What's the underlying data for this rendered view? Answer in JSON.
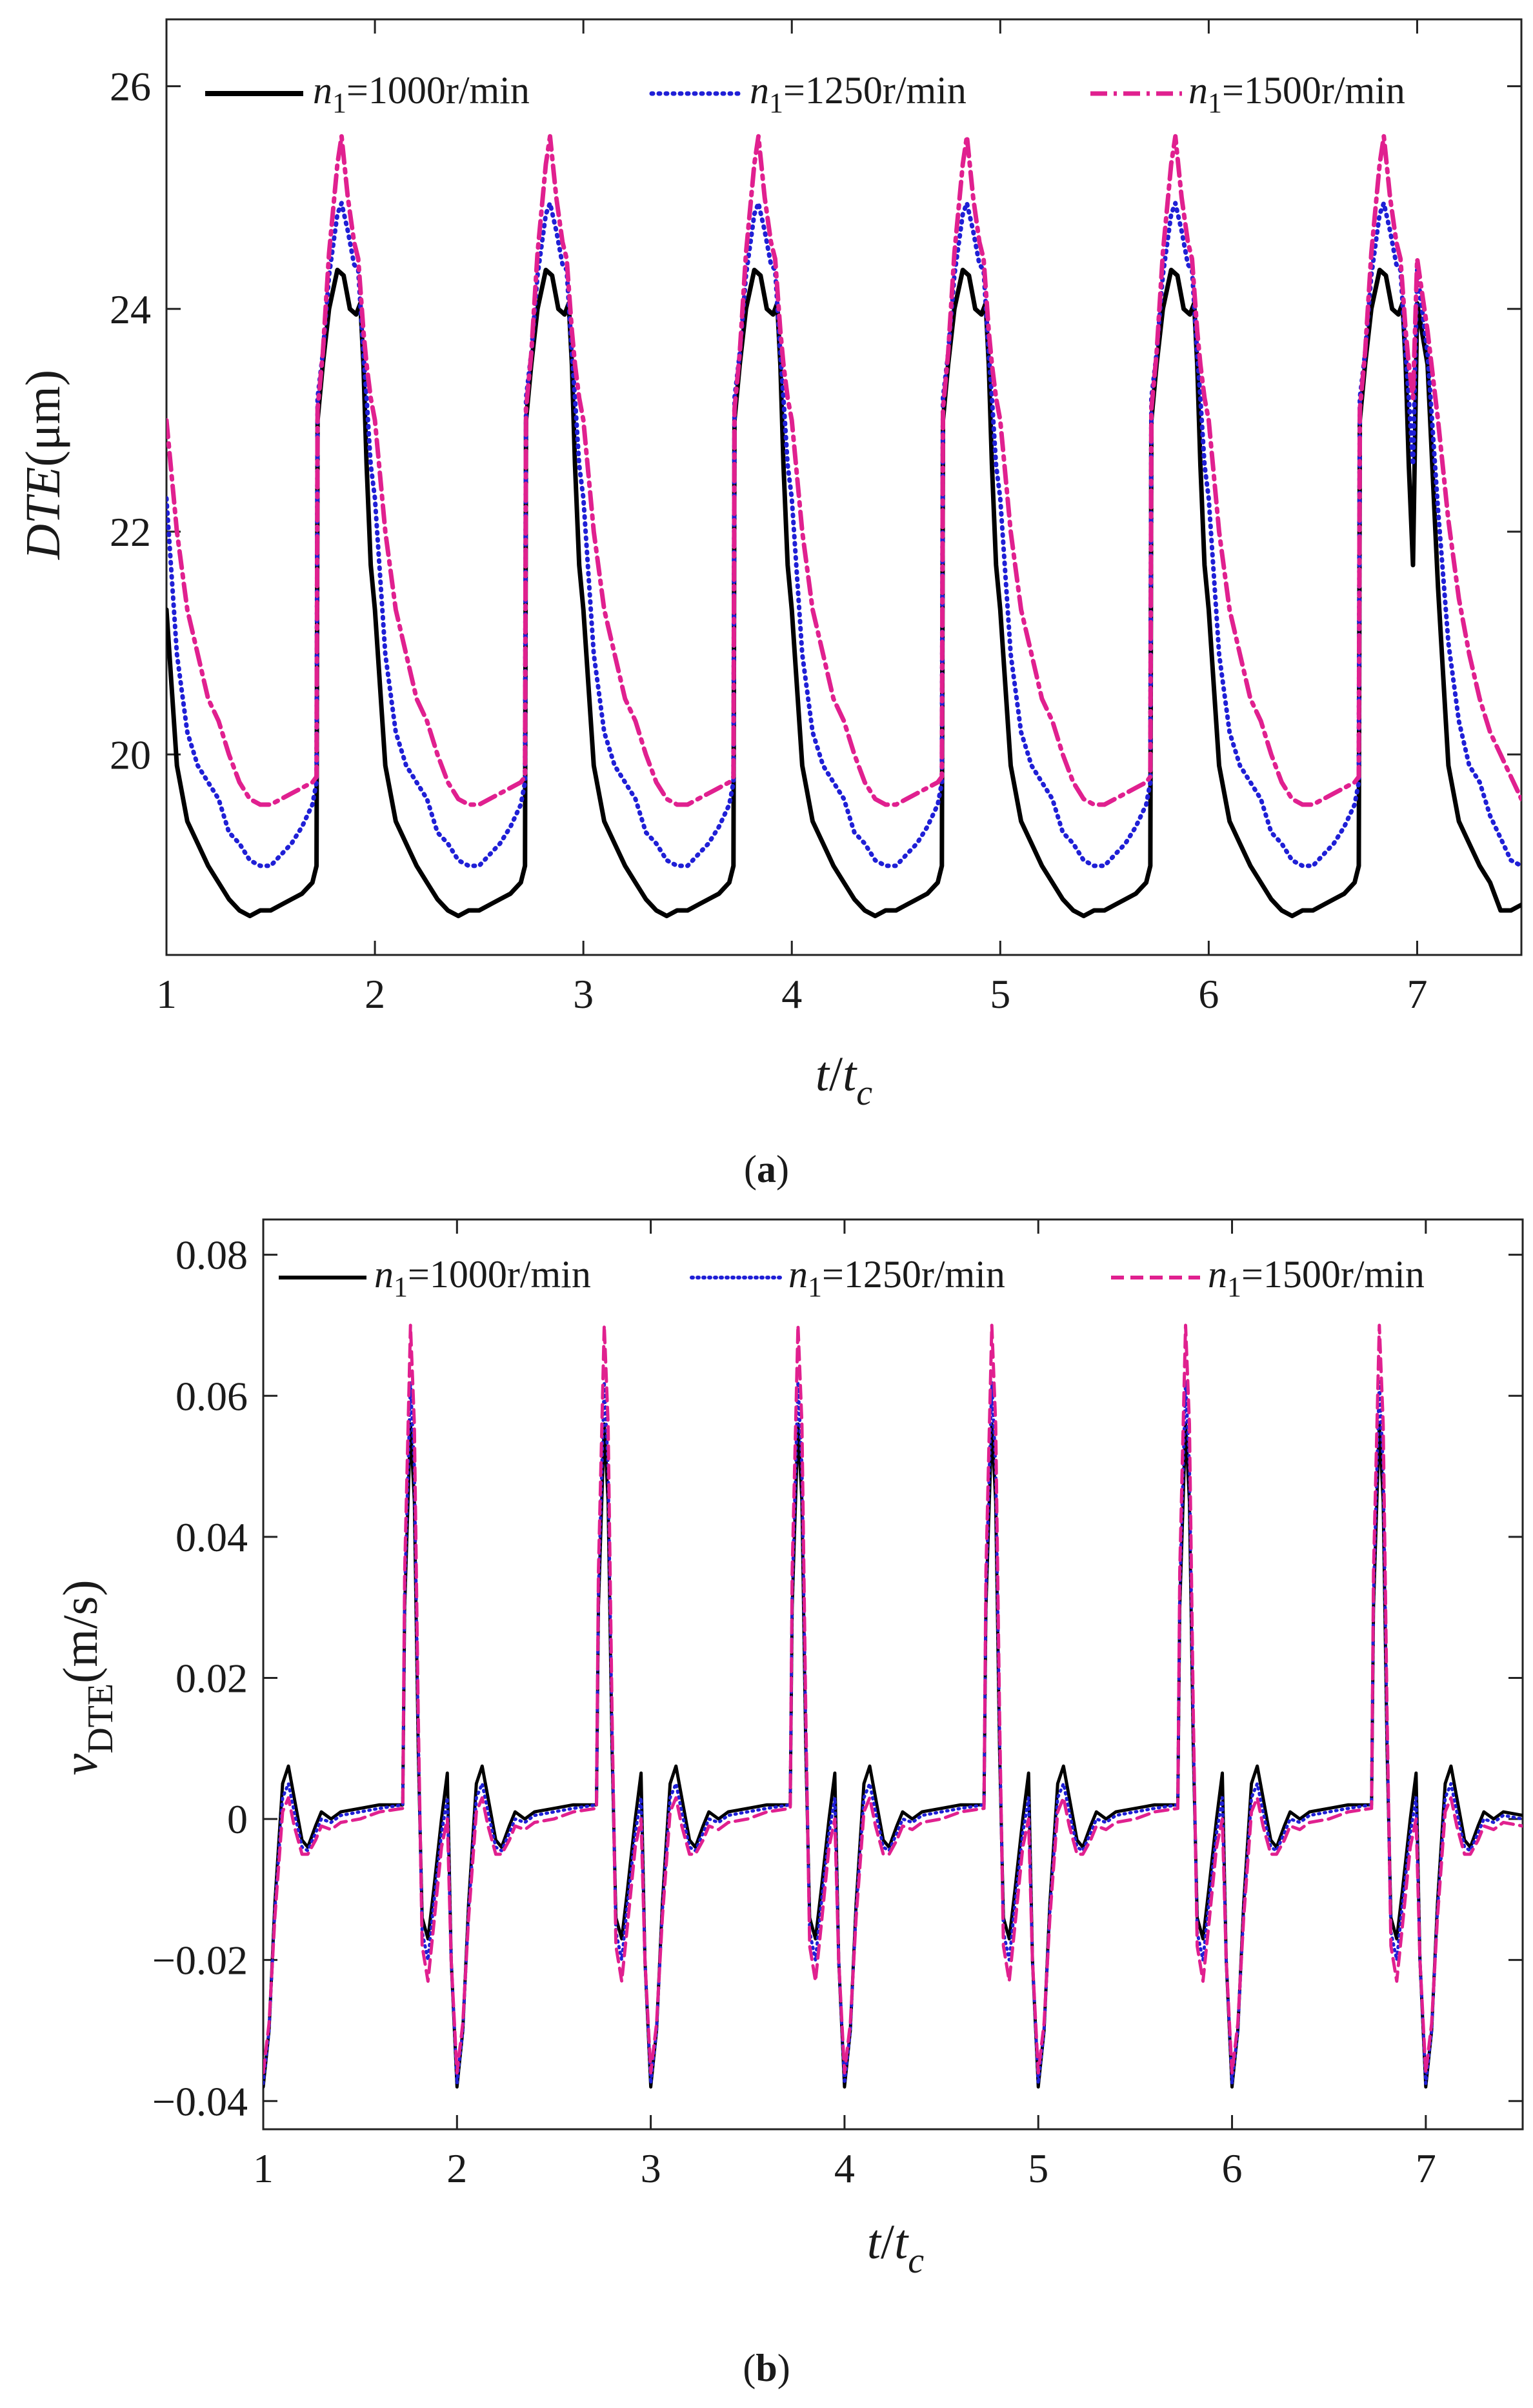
{
  "chart_data": [
    {
      "id": "a",
      "type": "line",
      "caption": {
        "open": "(",
        "letter": "a",
        "close": ")"
      },
      "ylabel": {
        "main": "DTE",
        "unit": "(μm)"
      },
      "xlabel": {
        "num": "t",
        "slash": "/",
        "den": "t",
        "sub": "c"
      },
      "xlim": [
        1,
        7.5
      ],
      "ylim": [
        18.2,
        26.6
      ],
      "xticks": [
        1,
        2,
        3,
        4,
        5,
        6,
        7
      ],
      "yticks": [
        20,
        22,
        24,
        26
      ],
      "period": 1,
      "legend_position": "top",
      "series": [
        {
          "name": "n1=1000r/min",
          "label": {
            "var": "n",
            "sub": "1",
            "rest": "=1000r/min"
          },
          "color": "#000000",
          "style": "solid",
          "cycle": [
            [
              0.0,
              21.3
            ],
            [
              0.05,
              19.9
            ],
            [
              0.1,
              19.4
            ],
            [
              0.15,
              19.2
            ],
            [
              0.2,
              19.0
            ],
            [
              0.25,
              18.85
            ],
            [
              0.3,
              18.7
            ],
            [
              0.35,
              18.6
            ],
            [
              0.4,
              18.55
            ],
            [
              0.45,
              18.6
            ],
            [
              0.5,
              18.6
            ],
            [
              0.55,
              18.65
            ],
            [
              0.6,
              18.7
            ],
            [
              0.65,
              18.75
            ],
            [
              0.7,
              18.85
            ],
            [
              0.72,
              19.0
            ],
            [
              0.725,
              23.0
            ],
            [
              0.75,
              23.5
            ],
            [
              0.78,
              24.0
            ],
            [
              0.82,
              24.35
            ],
            [
              0.85,
              24.3
            ],
            [
              0.88,
              24.0
            ],
            [
              0.91,
              23.95
            ],
            [
              0.93,
              24.05
            ],
            [
              0.945,
              23.5
            ],
            [
              0.96,
              22.6
            ],
            [
              0.98,
              21.7
            ]
          ],
          "values": [
            [
              7.0,
              24.05
            ],
            [
              7.05,
              23.5
            ],
            [
              7.1,
              21.5
            ],
            [
              7.15,
              19.9
            ],
            [
              7.2,
              19.4
            ],
            [
              7.25,
              19.2
            ],
            [
              7.3,
              19.0
            ],
            [
              7.35,
              18.85
            ],
            [
              7.4,
              18.6
            ],
            [
              7.45,
              18.6
            ],
            [
              7.5,
              18.65
            ]
          ]
        },
        {
          "name": "n1=1250r/min",
          "label": {
            "var": "n",
            "sub": "1",
            "rest": "=1250r/min"
          },
          "color": "#1f1fd6",
          "style": "dotted",
          "cycle": [
            [
              0.0,
              22.3
            ],
            [
              0.05,
              20.9
            ],
            [
              0.1,
              20.2
            ],
            [
              0.15,
              19.9
            ],
            [
              0.2,
              19.75
            ],
            [
              0.25,
              19.6
            ],
            [
              0.3,
              19.3
            ],
            [
              0.35,
              19.2
            ],
            [
              0.4,
              19.05
            ],
            [
              0.45,
              19.0
            ],
            [
              0.5,
              19.0
            ],
            [
              0.55,
              19.1
            ],
            [
              0.6,
              19.2
            ],
            [
              0.65,
              19.35
            ],
            [
              0.7,
              19.55
            ],
            [
              0.72,
              19.75
            ],
            [
              0.725,
              23.2
            ],
            [
              0.75,
              23.6
            ],
            [
              0.78,
              24.3
            ],
            [
              0.82,
              24.85
            ],
            [
              0.84,
              24.95
            ],
            [
              0.87,
              24.7
            ],
            [
              0.9,
              24.4
            ],
            [
              0.92,
              24.35
            ],
            [
              0.945,
              23.6
            ],
            [
              0.96,
              23.2
            ],
            [
              0.98,
              22.6
            ]
          ],
          "values": [
            [
              7.0,
              24.35
            ],
            [
              7.05,
              23.6
            ],
            [
              7.1,
              22.2
            ],
            [
              7.15,
              21.0
            ],
            [
              7.2,
              20.3
            ],
            [
              7.25,
              19.9
            ],
            [
              7.3,
              19.75
            ],
            [
              7.35,
              19.45
            ],
            [
              7.4,
              19.25
            ],
            [
              7.45,
              19.05
            ],
            [
              7.5,
              19.0
            ]
          ]
        },
        {
          "name": "n1=1500r/min",
          "label": {
            "var": "n",
            "sub": "1",
            "rest": "=1500r/min"
          },
          "color": "#e0208f",
          "style": "dashdot",
          "cycle": [
            [
              0.0,
              23.0
            ],
            [
              0.05,
              22.0
            ],
            [
              0.1,
              21.3
            ],
            [
              0.15,
              20.9
            ],
            [
              0.2,
              20.5
            ],
            [
              0.25,
              20.3
            ],
            [
              0.3,
              20.0
            ],
            [
              0.35,
              19.75
            ],
            [
              0.4,
              19.6
            ],
            [
              0.45,
              19.55
            ],
            [
              0.5,
              19.55
            ],
            [
              0.55,
              19.6
            ],
            [
              0.6,
              19.65
            ],
            [
              0.65,
              19.7
            ],
            [
              0.7,
              19.75
            ],
            [
              0.72,
              19.8
            ],
            [
              0.725,
              23.1
            ],
            [
              0.75,
              23.6
            ],
            [
              0.78,
              24.5
            ],
            [
              0.82,
              25.3
            ],
            [
              0.84,
              25.55
            ],
            [
              0.87,
              25.0
            ],
            [
              0.9,
              24.6
            ],
            [
              0.92,
              24.45
            ],
            [
              0.945,
              23.8
            ],
            [
              0.96,
              23.5
            ],
            [
              0.98,
              23.2
            ]
          ],
          "values": [
            [
              7.0,
              24.45
            ],
            [
              7.05,
              23.8
            ],
            [
              7.1,
              23.0
            ],
            [
              7.15,
              22.1
            ],
            [
              7.2,
              21.4
            ],
            [
              7.25,
              20.9
            ],
            [
              7.3,
              20.5
            ],
            [
              7.35,
              20.2
            ],
            [
              7.4,
              20.0
            ],
            [
              7.45,
              19.8
            ],
            [
              7.5,
              19.6
            ]
          ]
        }
      ]
    },
    {
      "id": "b",
      "type": "line",
      "caption": {
        "open": "(",
        "letter": "b",
        "close": ")"
      },
      "ylabel": {
        "main": "v",
        "sub": "DTE",
        "unit": "(m/s)"
      },
      "xlabel": {
        "num": "t",
        "slash": "/",
        "den": "t",
        "sub": "c"
      },
      "xlim": [
        1,
        7.5
      ],
      "ylim": [
        -0.044,
        0.085
      ],
      "xticks": [
        1,
        2,
        3,
        4,
        5,
        6,
        7
      ],
      "yticks": [
        -0.04,
        -0.02,
        0,
        0.02,
        0.04,
        0.06,
        0.08
      ],
      "ytick_labels": [
        "−0.04",
        "−0.02",
        "0",
        "0.02",
        "0.04",
        "0.06",
        "0.08"
      ],
      "period": 1,
      "legend_position": "top",
      "series": [
        {
          "name": "n1=1000r/min",
          "label": {
            "var": "n",
            "sub": "1",
            "rest": "=1000r/min"
          },
          "color": "#000000",
          "style": "solid",
          "cycle": [
            [
              0.0,
              -0.038
            ],
            [
              0.03,
              -0.03
            ],
            [
              0.06,
              -0.012
            ],
            [
              0.1,
              0.005
            ],
            [
              0.13,
              0.0075
            ],
            [
              0.16,
              0.003
            ],
            [
              0.2,
              -0.003
            ],
            [
              0.23,
              -0.004
            ],
            [
              0.27,
              -0.001
            ],
            [
              0.3,
              0.001
            ],
            [
              0.35,
              0.0
            ],
            [
              0.4,
              0.001
            ],
            [
              0.5,
              0.0015
            ],
            [
              0.6,
              0.002
            ],
            [
              0.72,
              0.002
            ],
            [
              0.73,
              0.03
            ],
            [
              0.76,
              0.056
            ],
            [
              0.78,
              0.045
            ],
            [
              0.8,
              0.01
            ],
            [
              0.82,
              -0.014
            ],
            [
              0.85,
              -0.017
            ],
            [
              0.88,
              -0.01
            ],
            [
              0.92,
              0.0
            ],
            [
              0.95,
              0.0065
            ],
            [
              0.97,
              -0.02
            ]
          ],
          "values": [
            [
              7.0,
              -0.038
            ],
            [
              7.03,
              -0.03
            ],
            [
              7.06,
              -0.012
            ],
            [
              7.1,
              0.005
            ],
            [
              7.13,
              0.0075
            ],
            [
              7.16,
              0.003
            ],
            [
              7.2,
              -0.003
            ],
            [
              7.23,
              -0.004
            ],
            [
              7.27,
              -0.001
            ],
            [
              7.3,
              0.001
            ],
            [
              7.35,
              0.0
            ],
            [
              7.4,
              0.001
            ],
            [
              7.5,
              0.0005
            ]
          ]
        },
        {
          "name": "n1=1250r/min",
          "label": {
            "var": "n",
            "sub": "1",
            "rest": "=1250r/min"
          },
          "color": "#1f1fd6",
          "style": "dotted",
          "cycle": [
            [
              0.0,
              -0.0375
            ],
            [
              0.03,
              -0.03
            ],
            [
              0.06,
              -0.013
            ],
            [
              0.1,
              0.003
            ],
            [
              0.13,
              0.005
            ],
            [
              0.16,
              0.001
            ],
            [
              0.2,
              -0.004
            ],
            [
              0.23,
              -0.0045
            ],
            [
              0.27,
              -0.002
            ],
            [
              0.3,
              0.0
            ],
            [
              0.35,
              -0.0005
            ],
            [
              0.4,
              0.0005
            ],
            [
              0.5,
              0.001
            ],
            [
              0.6,
              0.0015
            ],
            [
              0.72,
              0.002
            ],
            [
              0.73,
              0.032
            ],
            [
              0.76,
              0.062
            ],
            [
              0.78,
              0.05
            ],
            [
              0.8,
              0.012
            ],
            [
              0.82,
              -0.016
            ],
            [
              0.85,
              -0.02
            ],
            [
              0.88,
              -0.012
            ],
            [
              0.92,
              -0.002
            ],
            [
              0.95,
              0.003
            ],
            [
              0.97,
              -0.02
            ]
          ],
          "values": [
            [
              7.0,
              -0.0375
            ],
            [
              7.03,
              -0.03
            ],
            [
              7.06,
              -0.013
            ],
            [
              7.1,
              0.003
            ],
            [
              7.13,
              0.005
            ],
            [
              7.16,
              0.001
            ],
            [
              7.2,
              -0.004
            ],
            [
              7.23,
              -0.0045
            ],
            [
              7.27,
              -0.002
            ],
            [
              7.3,
              0.0
            ],
            [
              7.35,
              -0.0005
            ],
            [
              7.4,
              0.0005
            ],
            [
              7.5,
              0.0
            ]
          ]
        },
        {
          "name": "n1=1500r/min",
          "label": {
            "var": "n",
            "sub": "1",
            "rest": "=1500r/min"
          },
          "color": "#e0208f",
          "style": "dashed",
          "cycle": [
            [
              0.0,
              -0.036
            ],
            [
              0.03,
              -0.029
            ],
            [
              0.06,
              -0.014
            ],
            [
              0.1,
              0.001
            ],
            [
              0.13,
              0.003
            ],
            [
              0.16,
              -0.001
            ],
            [
              0.2,
              -0.005
            ],
            [
              0.23,
              -0.005
            ],
            [
              0.27,
              -0.003
            ],
            [
              0.3,
              -0.001
            ],
            [
              0.35,
              -0.0015
            ],
            [
              0.4,
              -0.0005
            ],
            [
              0.5,
              0.0
            ],
            [
              0.6,
              0.001
            ],
            [
              0.72,
              0.0015
            ],
            [
              0.73,
              0.035
            ],
            [
              0.76,
              0.07
            ],
            [
              0.78,
              0.056
            ],
            [
              0.8,
              0.015
            ],
            [
              0.82,
              -0.018
            ],
            [
              0.85,
              -0.023
            ],
            [
              0.88,
              -0.015
            ],
            [
              0.92,
              -0.004
            ],
            [
              0.95,
              0.0
            ],
            [
              0.97,
              -0.02
            ]
          ],
          "values": [
            [
              7.0,
              -0.036
            ],
            [
              7.03,
              -0.029
            ],
            [
              7.06,
              -0.014
            ],
            [
              7.1,
              0.001
            ],
            [
              7.13,
              0.003
            ],
            [
              7.16,
              -0.001
            ],
            [
              7.2,
              -0.005
            ],
            [
              7.23,
              -0.005
            ],
            [
              7.27,
              -0.003
            ],
            [
              7.3,
              -0.001
            ],
            [
              7.35,
              -0.0015
            ],
            [
              7.4,
              -0.0005
            ],
            [
              7.5,
              -0.001
            ]
          ]
        }
      ]
    }
  ]
}
